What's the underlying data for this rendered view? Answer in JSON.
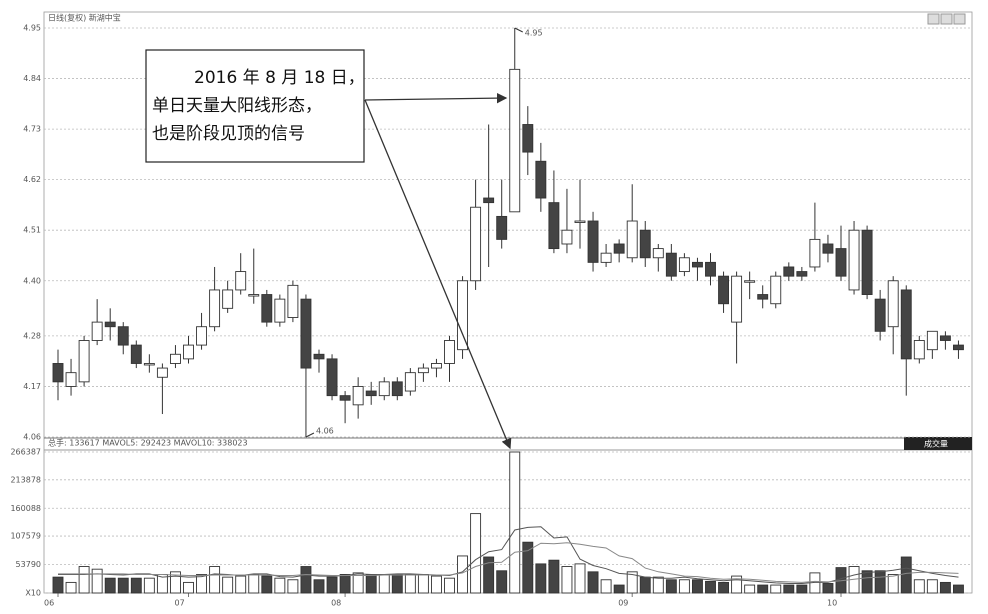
{
  "chart_data": [
    {
      "type": "candlestick",
      "title": "日线(复权) 新湖中宝",
      "categories": [
        "06",
        null,
        null,
        null,
        null,
        null,
        null,
        null,
        null,
        null,
        "07",
        null,
        null,
        null,
        null,
        null,
        null,
        null,
        null,
        null,
        null,
        null,
        "08",
        null,
        null,
        null,
        null,
        null,
        null,
        null,
        null,
        null,
        null,
        null,
        null,
        null,
        null,
        null,
        null,
        null,
        null,
        null,
        null,
        null,
        "09",
        null,
        null,
        null,
        null,
        null,
        null,
        null,
        null,
        null,
        null,
        null,
        null,
        null,
        null,
        null,
        "10",
        null,
        null,
        null,
        null,
        null,
        null,
        null,
        null,
        null
      ],
      "open": [
        4.22,
        4.17,
        4.18,
        4.27,
        4.31,
        4.3,
        4.26,
        4.22,
        4.19,
        4.22,
        4.23,
        4.26,
        4.3,
        4.34,
        4.38,
        4.37,
        4.37,
        4.31,
        4.32,
        4.36,
        4.24,
        4.23,
        4.15,
        4.13,
        4.16,
        4.15,
        4.18,
        4.16,
        4.2,
        4.21,
        4.22,
        4.25,
        4.4,
        4.58,
        4.54,
        4.55,
        4.74,
        4.66,
        4.57,
        4.48,
        4.53,
        4.53,
        4.44,
        4.48,
        4.45,
        4.51,
        4.45,
        4.46,
        4.42,
        4.44,
        4.44,
        4.41,
        4.31,
        4.4,
        4.37,
        4.35,
        4.43,
        4.42,
        4.43,
        4.48,
        4.47,
        4.38,
        4.51,
        4.36,
        4.3,
        4.38,
        4.23,
        4.25,
        4.28,
        4.26
      ],
      "close": [
        4.18,
        4.2,
        4.27,
        4.31,
        4.3,
        4.26,
        4.22,
        4.22,
        4.21,
        4.24,
        4.26,
        4.3,
        4.38,
        4.38,
        4.42,
        4.37,
        4.31,
        4.36,
        4.39,
        4.21,
        4.23,
        4.15,
        4.14,
        4.17,
        4.15,
        4.18,
        4.15,
        4.2,
        4.21,
        4.22,
        4.27,
        4.4,
        4.56,
        4.57,
        4.49,
        4.86,
        4.68,
        4.58,
        4.47,
        4.51,
        4.53,
        4.44,
        4.46,
        4.46,
        4.53,
        4.45,
        4.47,
        4.41,
        4.45,
        4.43,
        4.41,
        4.35,
        4.41,
        4.4,
        4.36,
        4.41,
        4.41,
        4.41,
        4.49,
        4.46,
        4.41,
        4.51,
        4.37,
        4.29,
        4.4,
        4.23,
        4.27,
        4.29,
        4.27,
        4.25
      ],
      "high": [
        4.25,
        4.23,
        4.28,
        4.36,
        4.34,
        4.31,
        4.27,
        4.24,
        4.22,
        4.26,
        4.28,
        4.33,
        4.43,
        4.4,
        4.46,
        4.47,
        4.38,
        4.37,
        4.4,
        4.37,
        4.25,
        4.24,
        4.16,
        4.19,
        4.18,
        4.19,
        4.19,
        4.21,
        4.22,
        4.23,
        4.28,
        4.41,
        4.62,
        4.74,
        4.62,
        4.95,
        4.78,
        4.7,
        4.64,
        4.6,
        4.62,
        4.55,
        4.48,
        4.49,
        4.61,
        4.53,
        4.48,
        4.48,
        4.46,
        4.45,
        4.46,
        4.42,
        4.42,
        4.42,
        4.39,
        4.42,
        4.44,
        4.43,
        4.57,
        4.5,
        4.52,
        4.53,
        4.52,
        4.38,
        4.41,
        4.39,
        4.28,
        4.29,
        4.29,
        4.27
      ],
      "low": [
        4.14,
        4.15,
        4.17,
        4.26,
        4.27,
        4.24,
        4.21,
        4.2,
        4.11,
        4.21,
        4.22,
        4.25,
        4.29,
        4.33,
        4.37,
        4.35,
        4.3,
        4.3,
        4.31,
        4.06,
        4.2,
        4.14,
        4.09,
        4.1,
        4.13,
        4.14,
        4.14,
        4.15,
        4.18,
        4.19,
        4.18,
        4.23,
        4.38,
        4.43,
        4.47,
        4.55,
        4.63,
        4.55,
        4.46,
        4.46,
        4.47,
        4.42,
        4.43,
        4.44,
        4.44,
        4.43,
        4.42,
        4.4,
        4.41,
        4.4,
        4.39,
        4.33,
        4.22,
        4.36,
        4.34,
        4.34,
        4.4,
        4.4,
        4.42,
        4.44,
        4.4,
        4.37,
        4.36,
        4.27,
        4.24,
        4.15,
        4.22,
        4.23,
        4.25,
        4.23
      ],
      "ylim": [
        4.06,
        4.95
      ],
      "yticks": [
        4.95,
        4.84,
        4.73,
        4.62,
        4.51,
        {
          "value": 4.4,
          "label": "4.40"
        },
        4.28,
        4.17,
        4.06
      ],
      "grid": true,
      "up_color": "#ffffff",
      "down_color": "#444444",
      "annotations": [
        "4.95",
        "4.06"
      ],
      "callout": [
        "2016 年 8 月 18 日，",
        "单日天量大阳线形态，",
        "也是阶段见顶的信号"
      ]
    },
    {
      "type": "volume",
      "title": "总手: 133617 MAVOL5: 292423 MAVOL10: 338023",
      "button": "成交量",
      "values": [
        30000,
        20000,
        50000,
        45000,
        28000,
        28000,
        28000,
        28000,
        35000,
        40000,
        20000,
        35000,
        50000,
        30000,
        32000,
        35000,
        32000,
        28000,
        25000,
        50000,
        25000,
        30000,
        35000,
        38000,
        35000,
        35000,
        35000,
        35000,
        35000,
        32000,
        28000,
        70000,
        150000,
        68000,
        42000,
        266387,
        96000,
        55000,
        62000,
        50000,
        55000,
        40000,
        25000,
        15000,
        40000,
        30000,
        30000,
        25000,
        25000,
        25000,
        22000,
        20000,
        32000,
        15000,
        15000,
        15000,
        15000,
        15000,
        38000,
        18000,
        48000,
        50000,
        42000,
        42000,
        35000,
        68000,
        25000,
        25000,
        20000,
        15000
      ],
      "ma5": [
        35000,
        35000,
        35000,
        36000,
        35000,
        34000,
        36000,
        36000,
        30000,
        32000,
        30000,
        31000,
        36000,
        35000,
        33000,
        36000,
        36000,
        31000,
        30000,
        34000,
        32000,
        32000,
        33000,
        36000,
        35000,
        35000,
        36000,
        36000,
        35000,
        34000,
        33000,
        40000,
        63000,
        78000,
        82000,
        119000,
        124000,
        125000,
        104000,
        106000,
        64000,
        52000,
        46000,
        37000,
        35000,
        30000,
        28000,
        28000,
        30000,
        27000,
        25000,
        23000,
        25000,
        23000,
        21000,
        19000,
        18000,
        18000,
        20000,
        20000,
        27000,
        34000,
        39000,
        40000,
        43000,
        47000,
        42000,
        37000,
        33000,
        30000
      ],
      "ma10": [
        36000,
        36000,
        36000,
        36000,
        36000,
        36000,
        35000,
        35000,
        35000,
        34000,
        33000,
        33000,
        34000,
        34000,
        34000,
        34000,
        34000,
        33000,
        33000,
        35000,
        34000,
        33000,
        33000,
        33000,
        33000,
        34000,
        34000,
        34000,
        34000,
        34000,
        34000,
        38000,
        50000,
        57000,
        58000,
        77000,
        80000,
        94000,
        93000,
        95000,
        92000,
        88000,
        85000,
        70000,
        65000,
        47000,
        40000,
        36000,
        32000,
        31000,
        28000,
        26000,
        27000,
        26000,
        24000,
        22000,
        21000,
        20000,
        22000,
        21000,
        23000,
        26000,
        29000,
        30000,
        32000,
        37000,
        39000,
        39000,
        38000,
        37000
      ],
      "ma5_color": "#555555",
      "ma10_color": "#888888",
      "ylim": [
        0,
        266387
      ],
      "yticks": [
        266387,
        213878,
        160088,
        107579,
        53790,
        {
          "value": 0,
          "label": "X10"
        }
      ],
      "grid": true
    }
  ]
}
